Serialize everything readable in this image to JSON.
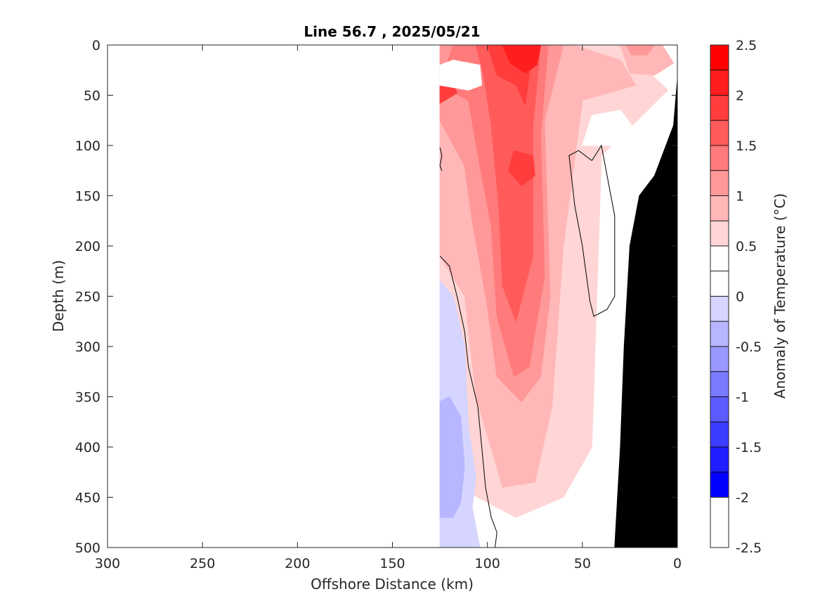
{
  "chart_data": {
    "type": "heatmap",
    "title": "Line 56.7 , 2025/05/21",
    "xlabel": "Offshore Distance (km)",
    "ylabel": "Depth (m)",
    "xlim": [
      300,
      0
    ],
    "ylim": [
      500,
      0
    ],
    "x_ticks": [
      300,
      250,
      200,
      150,
      100,
      50,
      0
    ],
    "y_ticks": [
      0,
      50,
      100,
      150,
      200,
      250,
      300,
      350,
      400,
      450,
      500
    ],
    "colorbar": {
      "label": "Anomaly of Temperature (°C)",
      "range": [
        -2.5,
        2.5
      ],
      "step": 0.25,
      "ticks": [
        2.5,
        2,
        1.5,
        1,
        0.5,
        0,
        -0.5,
        -1,
        -1.5,
        -2,
        -2.5
      ],
      "tick_labels": [
        "2.5",
        "2",
        "1.5",
        "1",
        "0.5",
        "0",
        "-0.5",
        "-1",
        "-1.5",
        "-2",
        "-2.5"
      ],
      "colors": [
        "#ff0000",
        "#ff1e1e",
        "#ff3d3d",
        "#ff5b5b",
        "#ff7a7a",
        "#ff9898",
        "#ffb7b7",
        "#ffd5d5",
        "#ffffff",
        "#ffffff",
        "#d5d5ff",
        "#b7b7ff",
        "#9898ff",
        "#7a7aff",
        "#5b5bff",
        "#3d3dff",
        "#1e1eff",
        "#0000ff"
      ]
    },
    "data_extent_km": [
      0,
      125
    ],
    "bathymetry_color": "#000000",
    "anomaly_regions": [
      {
        "level": 0.25,
        "color": "#ffd5d5",
        "points": [
          [
            125,
            0
          ],
          [
            30,
            0
          ],
          [
            5,
            45
          ],
          [
            40,
            110
          ],
          [
            45,
            400
          ],
          [
            60,
            450
          ],
          [
            85,
            470
          ],
          [
            105,
            450
          ],
          [
            125,
            425
          ]
        ]
      },
      {
        "level": 0.5,
        "color": "#ffb7b7",
        "points": [
          [
            125,
            0
          ],
          [
            55,
            0
          ],
          [
            30,
            15
          ],
          [
            22,
            40
          ],
          [
            50,
            55
          ],
          [
            60,
            200
          ],
          [
            66,
            360
          ],
          [
            75,
            435
          ],
          [
            92,
            440
          ],
          [
            106,
            350
          ],
          [
            112,
            250
          ],
          [
            125,
            210
          ]
        ]
      },
      {
        "level": 0.75,
        "color": "#ff9898",
        "points": [
          [
            125,
            0
          ],
          [
            60,
            0
          ],
          [
            70,
            75
          ],
          [
            67,
            250
          ],
          [
            72,
            330
          ],
          [
            82,
            355
          ],
          [
            95,
            330
          ],
          [
            100,
            260
          ],
          [
            108,
            175
          ],
          [
            112,
            120
          ],
          [
            125,
            75
          ]
        ]
      },
      {
        "level": 1.0,
        "color": "#ff7a7a",
        "points": [
          [
            118,
            0
          ],
          [
            68,
            0
          ],
          [
            72,
            90
          ],
          [
            70,
            230
          ],
          [
            78,
            320
          ],
          [
            86,
            330
          ],
          [
            95,
            270
          ],
          [
            98,
            180
          ],
          [
            104,
            120
          ],
          [
            110,
            55
          ],
          [
            125,
            40
          ]
        ]
      },
      {
        "level": 1.25,
        "color": "#ff5b5b",
        "points": [
          [
            106,
            0
          ],
          [
            72,
            0
          ],
          [
            76,
            80
          ],
          [
            76,
            210
          ],
          [
            85,
            275
          ],
          [
            92,
            240
          ],
          [
            94,
            160
          ],
          [
            98,
            80
          ],
          [
            102,
            30
          ]
        ]
      },
      {
        "level": 1.5,
        "color": "#ff3d3d",
        "points": [
          [
            100,
            0
          ],
          [
            76,
            0
          ],
          [
            80,
            60
          ],
          [
            85,
            40
          ],
          [
            95,
            30
          ]
        ]
      },
      {
        "level": 1.5,
        "color": "#ff3d3d",
        "points": [
          [
            86,
            105
          ],
          [
            76,
            110
          ],
          [
            75,
            130
          ],
          [
            82,
            140
          ],
          [
            89,
            125
          ]
        ]
      },
      {
        "level": 1.75,
        "color": "#ff1e1e",
        "points": [
          [
            92,
            0
          ],
          [
            72,
            0
          ],
          [
            74,
            20
          ],
          [
            80,
            28
          ],
          [
            88,
            18
          ]
        ]
      },
      {
        "level": 1.5,
        "color": "#ff3d3d",
        "points": [
          [
            125,
            35
          ],
          [
            118,
            38
          ],
          [
            116,
            48
          ],
          [
            125,
            58
          ]
        ]
      },
      {
        "level": 0.5,
        "color": "#ffb7b7",
        "points": [
          [
            30,
            0
          ],
          [
            8,
            0
          ],
          [
            2,
            18
          ],
          [
            12,
            30
          ],
          [
            25,
            28
          ]
        ]
      },
      {
        "level": 0.75,
        "color": "#ff9898",
        "points": [
          [
            27,
            0
          ],
          [
            12,
            0
          ],
          [
            16,
            10
          ],
          [
            24,
            10
          ]
        ]
      },
      {
        "level": -0.25,
        "color": "#d5d5ff",
        "points": [
          [
            125,
            235
          ],
          [
            118,
            250
          ],
          [
            112,
            300
          ],
          [
            110,
            380
          ],
          [
            106,
            430
          ],
          [
            108,
            460
          ],
          [
            104,
            500
          ],
          [
            125,
            500
          ]
        ]
      },
      {
        "level": -0.5,
        "color": "#b7b7ff",
        "points": [
          [
            125,
            355
          ],
          [
            120,
            350
          ],
          [
            114,
            370
          ],
          [
            112,
            420
          ],
          [
            114,
            455
          ],
          [
            118,
            470
          ],
          [
            125,
            470
          ]
        ]
      },
      {
        "level": 0.0,
        "color": "#ffffff",
        "points": [
          [
            125,
            20
          ],
          [
            118,
            15
          ],
          [
            104,
            20
          ],
          [
            103,
            40
          ],
          [
            110,
            45
          ],
          [
            125,
            40
          ]
        ]
      },
      {
        "level": 0.0,
        "color": "#ffffff",
        "points": [
          [
            45,
            70
          ],
          [
            30,
            65
          ],
          [
            22,
            85
          ],
          [
            30,
            100
          ],
          [
            50,
            100
          ]
        ]
      }
    ],
    "zero_contours": [
      [
        [
          125,
          102
        ],
        [
          124,
          110
        ],
        [
          125,
          120
        ],
        [
          124,
          125
        ]
      ],
      [
        [
          125,
          210
        ],
        [
          120,
          220
        ],
        [
          116,
          250
        ],
        [
          112,
          285
        ],
        [
          110,
          320
        ],
        [
          105,
          360
        ],
        [
          103,
          400
        ],
        [
          101,
          440
        ],
        [
          98,
          470
        ],
        [
          95,
          485
        ],
        [
          96,
          500
        ]
      ],
      [
        [
          45,
          115
        ],
        [
          40,
          100
        ],
        [
          33,
          170
        ],
        [
          33,
          250
        ],
        [
          37,
          263
        ],
        [
          44,
          270
        ],
        [
          46,
          255
        ],
        [
          50,
          200
        ],
        [
          54,
          160
        ],
        [
          57,
          110
        ],
        [
          52,
          105
        ],
        [
          45,
          115
        ]
      ]
    ],
    "bathymetry": [
      [
        0,
        35
      ],
      [
        2,
        80
      ],
      [
        8,
        110
      ],
      [
        12,
        130
      ],
      [
        20,
        150
      ],
      [
        25,
        200
      ],
      [
        28,
        300
      ],
      [
        30,
        400
      ],
      [
        33,
        500
      ],
      [
        0,
        500
      ]
    ]
  }
}
